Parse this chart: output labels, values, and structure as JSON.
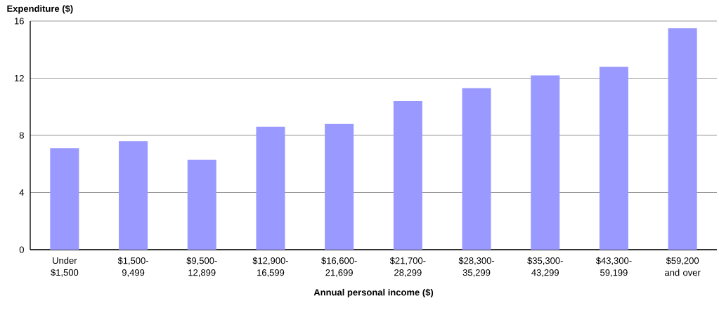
{
  "chart_data": {
    "type": "bar",
    "xlabel": "Annual personal income ($)",
    "ylabel": "Expenditure ($)",
    "categories": [
      "Under $1,500",
      "$1,500-9,499",
      "$9,500-12,899",
      "$12,900-16,599",
      "$16,600-21,699",
      "$21,700-28,299",
      "$28,300-35,299",
      "$35,300-43,299",
      "$43,300-59,199",
      "$59,200 and over"
    ],
    "values": [
      7.1,
      7.6,
      6.3,
      8.6,
      8.8,
      10.4,
      11.3,
      12.2,
      12.8,
      15.5
    ],
    "color": "#9999ff",
    "ylim": [
      0,
      16
    ],
    "yticks": [
      0,
      4,
      8,
      12,
      16
    ],
    "grid": "y"
  }
}
